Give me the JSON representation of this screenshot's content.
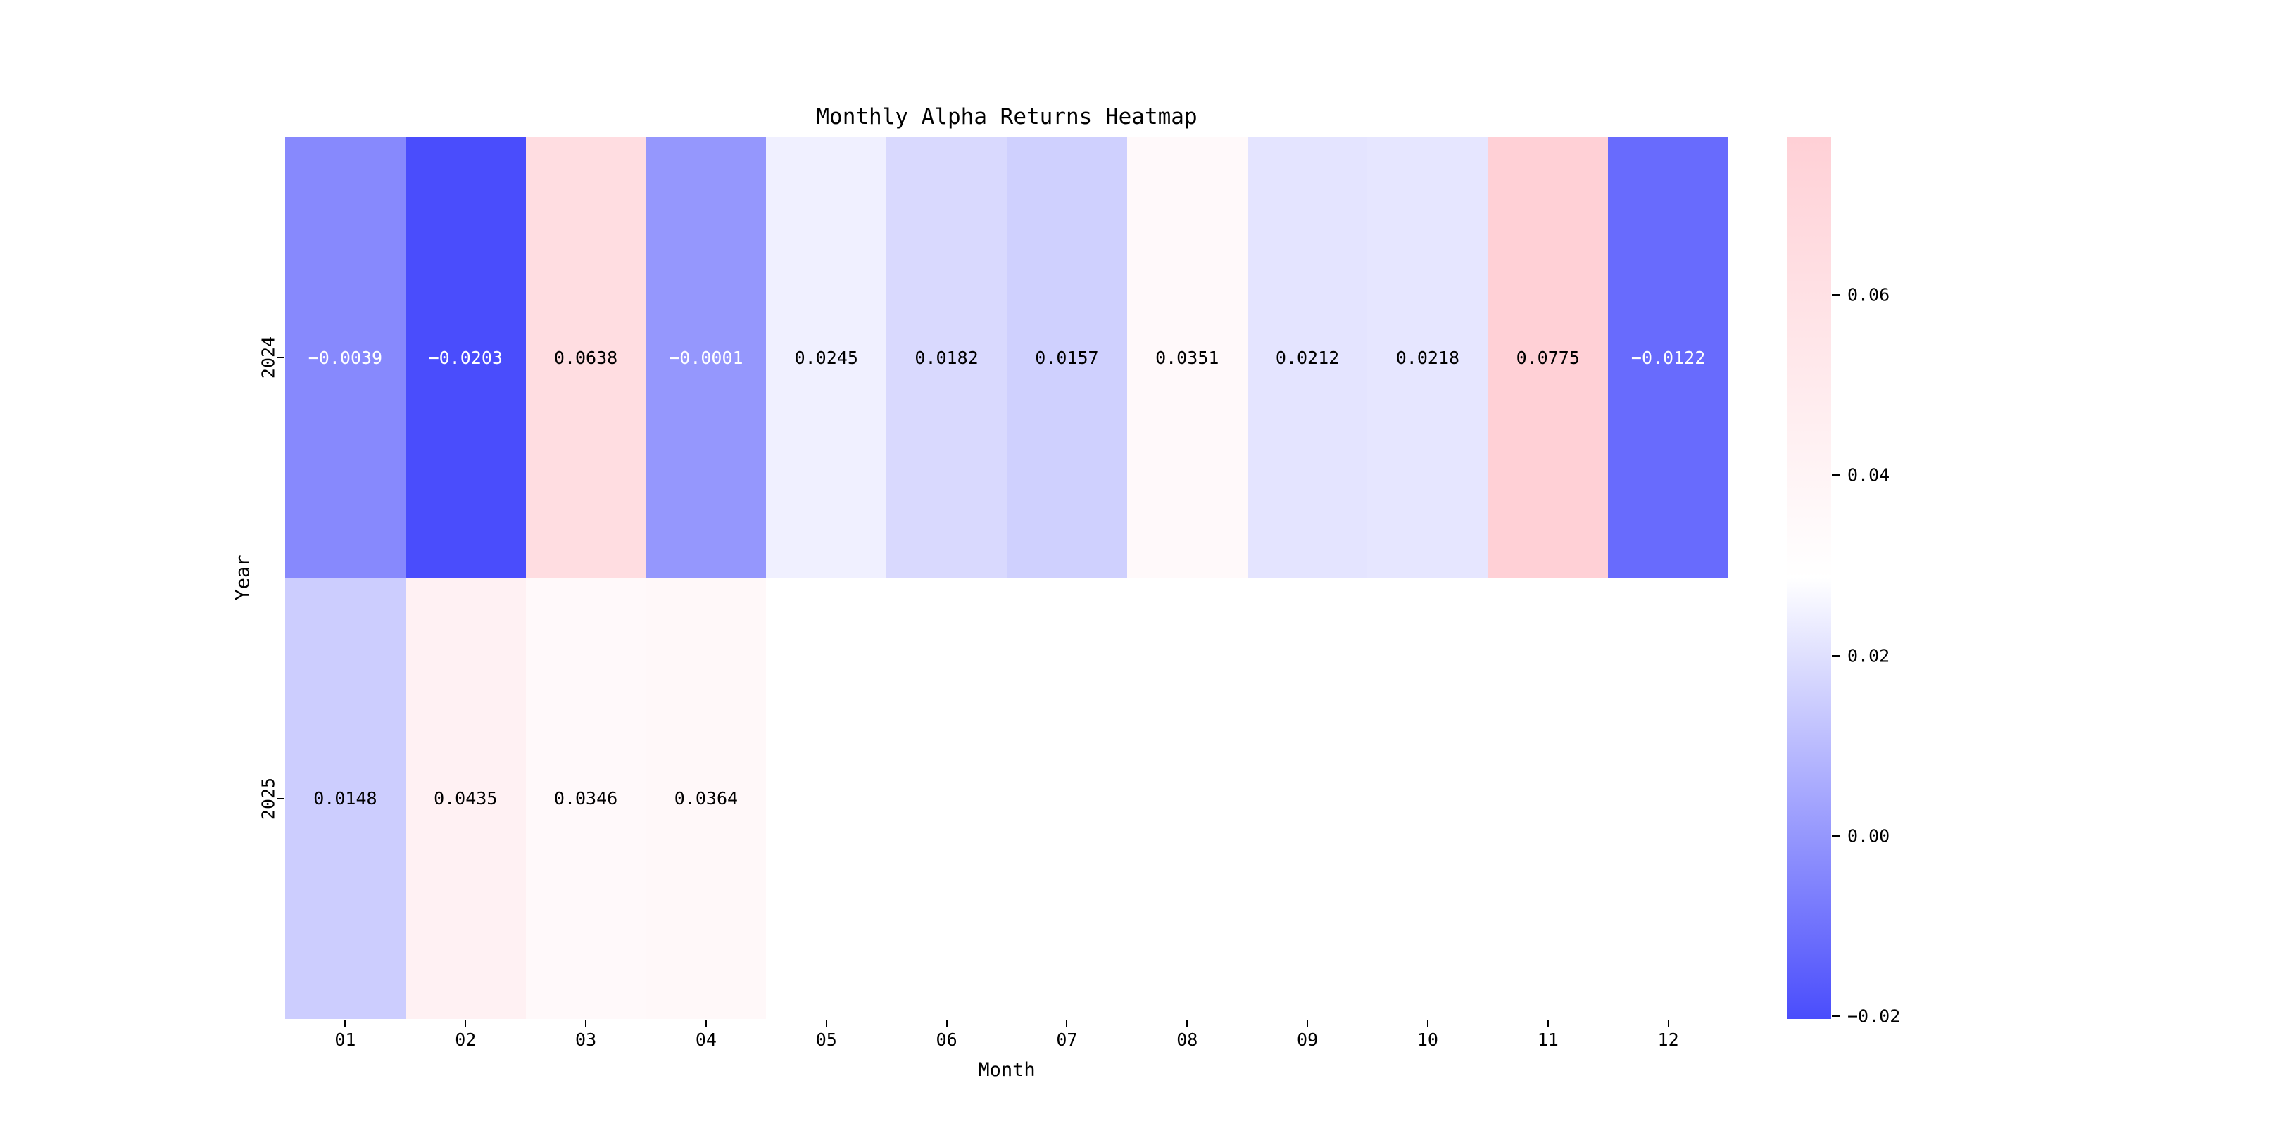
{
  "title": "Monthly Alpha Returns Heatmap",
  "xlabel": "Month",
  "ylabel": "Year",
  "chart_data": {
    "type": "heatmap",
    "x_categories": [
      "01",
      "02",
      "03",
      "04",
      "05",
      "06",
      "07",
      "08",
      "09",
      "10",
      "11",
      "12"
    ],
    "y_categories": [
      "2024",
      "2025"
    ],
    "colormap": {
      "style": "diverging pink-white-blue",
      "high_color": "#ffd0d6",
      "mid_color": "#ffffff",
      "low_color": "#4a4dfc",
      "vmin": -0.0203,
      "vmax": 0.0775,
      "center": 0.0286
    },
    "rows": [
      {
        "label": "2024",
        "cells": [
          {
            "value": -0.0039,
            "label": "−0.0039",
            "color": "#8789fd",
            "text_color": "#ffffff"
          },
          {
            "value": -0.0203,
            "label": "−0.0203",
            "color": "#4a4dfc",
            "text_color": "#ffffff"
          },
          {
            "value": 0.0638,
            "label": "0.0638",
            "color": "#ffdde1",
            "text_color": "#000000"
          },
          {
            "value": -0.0001,
            "label": "−0.0001",
            "color": "#9597fd",
            "text_color": "#ffffff"
          },
          {
            "value": 0.0245,
            "label": "0.0245",
            "color": "#f0f0ff",
            "text_color": "#000000"
          },
          {
            "value": 0.0182,
            "label": "0.0182",
            "color": "#d9d9fe",
            "text_color": "#000000"
          },
          {
            "value": 0.0157,
            "label": "0.0157",
            "color": "#cfd0fe",
            "text_color": "#000000"
          },
          {
            "value": 0.0351,
            "label": "0.0351",
            "color": "#fff9fa",
            "text_color": "#000000"
          },
          {
            "value": 0.0212,
            "label": "0.0212",
            "color": "#e4e4ff",
            "text_color": "#000000"
          },
          {
            "value": 0.0218,
            "label": "0.0218",
            "color": "#e6e6ff",
            "text_color": "#000000"
          },
          {
            "value": 0.0775,
            "label": "0.0775",
            "color": "#ffd0d6",
            "text_color": "#000000"
          },
          {
            "value": -0.0122,
            "label": "−0.0122",
            "color": "#686bfd",
            "text_color": "#ffffff"
          }
        ]
      },
      {
        "label": "2025",
        "cells": [
          {
            "value": 0.0148,
            "label": "0.0148",
            "color": "#cccdfe",
            "text_color": "#000000"
          },
          {
            "value": 0.0435,
            "label": "0.0435",
            "color": "#fff1f3",
            "text_color": "#000000"
          },
          {
            "value": 0.0346,
            "label": "0.0346",
            "color": "#fff9fa",
            "text_color": "#000000"
          },
          {
            "value": 0.0364,
            "label": "0.0364",
            "color": "#fff8f9",
            "text_color": "#000000"
          },
          {
            "value": null,
            "label": "",
            "color": "#ffffff",
            "text_color": "#000000"
          },
          {
            "value": null,
            "label": "",
            "color": "#ffffff",
            "text_color": "#000000"
          },
          {
            "value": null,
            "label": "",
            "color": "#ffffff",
            "text_color": "#000000"
          },
          {
            "value": null,
            "label": "",
            "color": "#ffffff",
            "text_color": "#000000"
          },
          {
            "value": null,
            "label": "",
            "color": "#ffffff",
            "text_color": "#000000"
          },
          {
            "value": null,
            "label": "",
            "color": "#ffffff",
            "text_color": "#000000"
          },
          {
            "value": null,
            "label": "",
            "color": "#ffffff",
            "text_color": "#000000"
          },
          {
            "value": null,
            "label": "",
            "color": "#ffffff",
            "text_color": "#000000"
          }
        ]
      }
    ],
    "colorbar": {
      "tick_labels": [
        "0.06",
        "0.04",
        "0.02",
        "0.00",
        "−0.02"
      ],
      "tick_values": [
        0.06,
        0.04,
        0.02,
        0.0,
        -0.02
      ],
      "vmin": -0.0203,
      "vmax": 0.0775
    },
    "legend_position": "right",
    "grid": false
  }
}
